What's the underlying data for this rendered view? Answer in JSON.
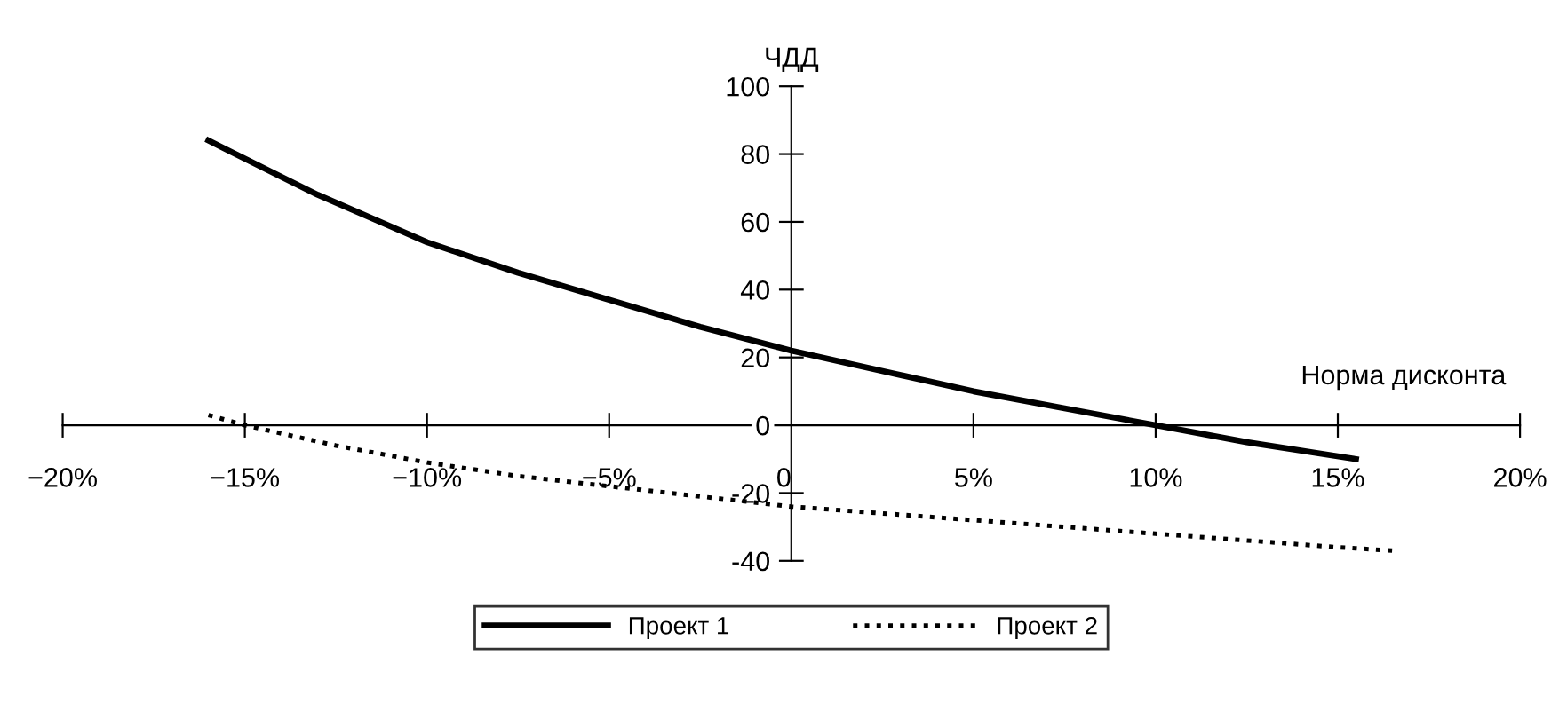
{
  "chart_data": {
    "type": "line",
    "ylabel": "ЧДД",
    "xlabel": "Норма дисконта",
    "xlim": [
      -20,
      20
    ],
    "ylim": [
      -40,
      100
    ],
    "xticks": [
      {
        "value": -20,
        "label": "−20%"
      },
      {
        "value": -15,
        "label": "−15%"
      },
      {
        "value": -10,
        "label": "−10%"
      },
      {
        "value": -5,
        "label": "−5%"
      },
      {
        "value": 0,
        "label": "0"
      },
      {
        "value": 5,
        "label": "5%"
      },
      {
        "value": 10,
        "label": "10%"
      },
      {
        "value": 15,
        "label": "15%"
      },
      {
        "value": 20,
        "label": "20%"
      }
    ],
    "yticks": [
      -40,
      -20,
      0,
      20,
      40,
      60,
      80,
      100
    ],
    "grid": false,
    "legend": "bottom",
    "marker": "none",
    "series": [
      {
        "name": "Проект 1",
        "color": "#000000",
        "line_style": "solid",
        "x": [
          -16,
          -13,
          -10,
          -7.5,
          -5,
          -2.5,
          0,
          2.5,
          5,
          7.5,
          10,
          12.5,
          15.5
        ],
        "values": [
          84,
          68,
          54,
          45,
          37,
          29,
          22,
          16,
          10,
          5,
          0,
          -5,
          -10
        ]
      },
      {
        "name": "Проект 2",
        "color": "#000000",
        "line_style": "dotted",
        "x": [
          -16,
          -15,
          -12.5,
          -10,
          -7.5,
          -5,
          -2.5,
          0,
          5,
          10,
          15,
          16.5
        ],
        "values": [
          3,
          0,
          -6,
          -11,
          -15,
          -18,
          -21,
          -24,
          -28,
          -32,
          -36,
          -37
        ]
      }
    ]
  }
}
